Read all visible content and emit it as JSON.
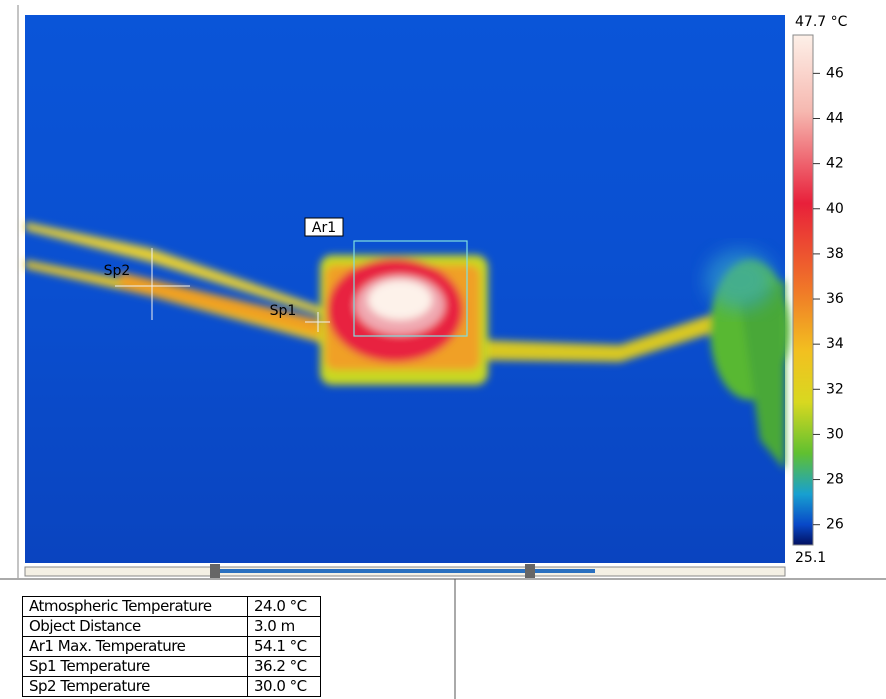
{
  "image": {
    "area_label": "Ar1",
    "spot_labels": [
      "Sp1",
      "Sp2"
    ]
  },
  "scale": {
    "top": {
      "value": 47.7,
      "label": "47.7 °C"
    },
    "bottom": 25.1,
    "ticks": [
      46,
      44,
      42,
      40,
      38,
      36,
      34,
      32,
      30,
      28,
      26
    ]
  },
  "table": {
    "rows": [
      [
        "Atmospheric Temperature",
        "24.0 °C"
      ],
      [
        "Object Distance",
        "3.0 m"
      ],
      [
        "Ar1 Max. Temperature",
        "54.1 °C"
      ],
      [
        "Sp1 Temperature",
        "36.2 °C"
      ],
      [
        "Sp2 Temperature",
        "30.0 °C"
      ]
    ]
  }
}
